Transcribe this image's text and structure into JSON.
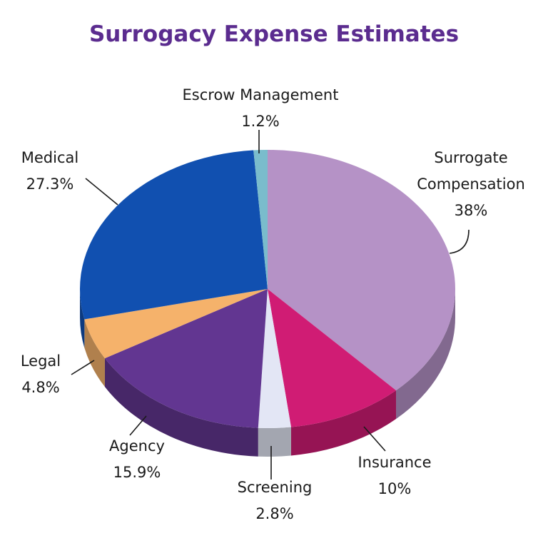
{
  "chart_data": {
    "type": "pie",
    "title": "Surrogacy Expense Estimates",
    "categories": [
      "Surrogate Compensation",
      "Insurance",
      "Screening",
      "Agency",
      "Legal",
      "Medical",
      "Escrow Management"
    ],
    "values": [
      38,
      10,
      2.8,
      15.9,
      4.8,
      27.3,
      1.2
    ],
    "value_labels": [
      "38%",
      "10%",
      "2.8%",
      "15.9%",
      "4.8%",
      "27.3%",
      "1.2%"
    ],
    "colors": [
      "#b592c6",
      "#d01c74",
      "#e3e6f5",
      "#623691",
      "#f5b26b",
      "#1150b0",
      "#7abccc"
    ]
  }
}
